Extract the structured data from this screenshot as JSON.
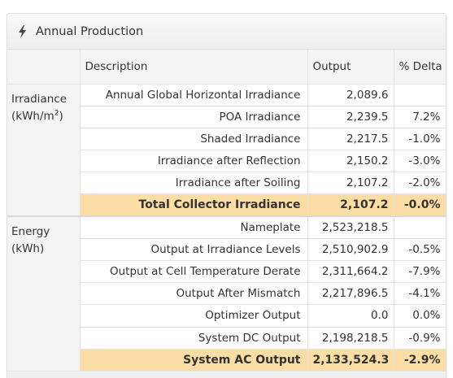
{
  "panel": {
    "title": "Annual Production",
    "icon": "lightning-bolt-icon"
  },
  "table": {
    "headers": {
      "category": "",
      "description": "Description",
      "output": "Output",
      "delta": "% Delta"
    },
    "groups": [
      {
        "label_line1": "Irradiance",
        "label_line2_prefix": "(kWh/m",
        "label_line2_sup": "2",
        "label_line2_suffix": ")",
        "rows": [
          {
            "description": "Annual Global Horizontal Irradiance",
            "output": "2,089.6",
            "delta": ""
          },
          {
            "description": "POA Irradiance",
            "output": "2,239.5",
            "delta": "7.2%"
          },
          {
            "description": "Shaded Irradiance",
            "output": "2,217.5",
            "delta": "-1.0%"
          },
          {
            "description": "Irradiance after Reflection",
            "output": "2,150.2",
            "delta": "-3.0%"
          },
          {
            "description": "Irradiance after Soiling",
            "output": "2,107.2",
            "delta": "-2.0%"
          },
          {
            "description": "Total Collector Irradiance",
            "output": "2,107.2",
            "delta": "-0.0%",
            "total": true
          }
        ]
      },
      {
        "label_line1": "Energy",
        "label_line2_prefix": "(kWh)",
        "label_line2_sup": "",
        "label_line2_suffix": "",
        "rows": [
          {
            "description": "Nameplate",
            "output": "2,523,218.5",
            "delta": ""
          },
          {
            "description": "Output at Irradiance Levels",
            "output": "2,510,902.9",
            "delta": "-0.5%"
          },
          {
            "description": "Output at Cell Temperature Derate",
            "output": "2,311,664.2",
            "delta": "-7.9%"
          },
          {
            "description": "Output After Mismatch",
            "output": "2,217,896.5",
            "delta": "-4.1%"
          },
          {
            "description": "Optimizer Output",
            "output": "0.0",
            "delta": "0.0%"
          },
          {
            "description": "System DC Output",
            "output": "2,198,218.5",
            "delta": "-0.9%"
          },
          {
            "description": "System AC Output",
            "output": "2,133,524.3",
            "delta": "-2.9%",
            "total": true
          }
        ]
      }
    ]
  },
  "colors": {
    "total_row_bg": "#fcdda6",
    "panel_bg": "#f4f4f4",
    "border": "#e3e3e3"
  }
}
